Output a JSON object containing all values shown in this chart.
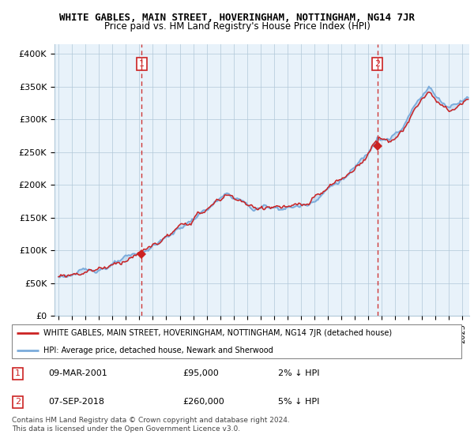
{
  "title": "WHITE GABLES, MAIN STREET, HOVERINGHAM, NOTTINGHAM, NG14 7JR",
  "subtitle": "Price paid vs. HM Land Registry's House Price Index (HPI)",
  "ylabel_ticks": [
    "£0",
    "£50K",
    "£100K",
    "£150K",
    "£200K",
    "£250K",
    "£300K",
    "£350K",
    "£400K"
  ],
  "ytick_values": [
    0,
    50000,
    100000,
    150000,
    200000,
    250000,
    300000,
    350000,
    400000
  ],
  "ylim": [
    0,
    415000
  ],
  "xlim_start": 1994.7,
  "xlim_end": 2025.5,
  "sale1_date": 2001.18,
  "sale1_price": 95000,
  "sale1_label": "1",
  "sale2_date": 2018.67,
  "sale2_price": 260000,
  "sale2_label": "2",
  "hpi_color": "#7aabdb",
  "price_color": "#cc2222",
  "vline_color": "#cc2222",
  "fill_color": "#ddeeff",
  "bg_color": "#e8f2fa",
  "legend_line1": "WHITE GABLES, MAIN STREET, HOVERINGHAM, NOTTINGHAM, NG14 7JR (detached house)",
  "legend_line2": "HPI: Average price, detached house, Newark and Sherwood",
  "annotation1_date": "09-MAR-2001",
  "annotation1_price": "£95,000",
  "annotation1_hpi": "2% ↓ HPI",
  "annotation2_date": "07-SEP-2018",
  "annotation2_price": "£260,000",
  "annotation2_hpi": "5% ↓ HPI",
  "footer": "Contains HM Land Registry data © Crown copyright and database right 2024.\nThis data is licensed under the Open Government Licence v3.0.",
  "title_fontsize": 9,
  "subtitle_fontsize": 8.5
}
